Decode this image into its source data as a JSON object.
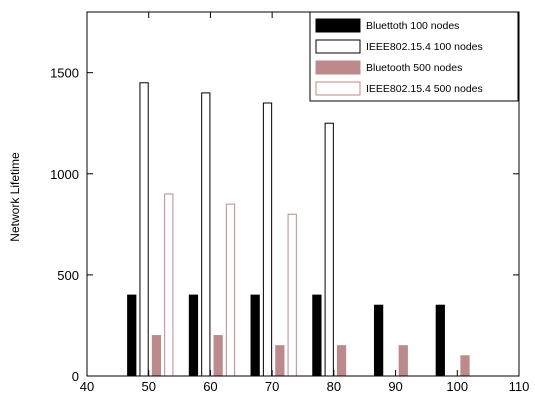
{
  "chart_data": {
    "type": "bar",
    "title": "",
    "xlabel": "",
    "ylabel": "Network Lifetime",
    "xlim": [
      40,
      110
    ],
    "ylim": [
      0,
      1800
    ],
    "xticks": [
      40,
      50,
      60,
      70,
      80,
      90,
      100,
      110
    ],
    "yticks": [
      0,
      500,
      1000,
      1500
    ],
    "grid": false,
    "legend_position": "top-right",
    "x": [
      50,
      60,
      70,
      80,
      90,
      100
    ],
    "series": [
      {
        "name": "Bluettoth 100 nodes",
        "fill": "#000000",
        "stroke": "#000000",
        "values": [
          400,
          400,
          400,
          400,
          350,
          350
        ]
      },
      {
        "name": "IEEE802.15.4 100 nodes",
        "fill": "#ffffff",
        "stroke": "#000000",
        "values": [
          1450,
          1400,
          1350,
          1250,
          null,
          null
        ]
      },
      {
        "name": "Bluetooth 500 nodes",
        "fill": "#bc8a8a",
        "stroke": "#bc8a8a",
        "values": [
          200,
          200,
          150,
          150,
          150,
          100
        ]
      },
      {
        "name": "IEEE802.15.4 500 nodes",
        "fill": "#ffffff",
        "stroke": "#bc8a8a",
        "values": [
          900,
          850,
          800,
          null,
          null,
          null
        ]
      }
    ]
  }
}
